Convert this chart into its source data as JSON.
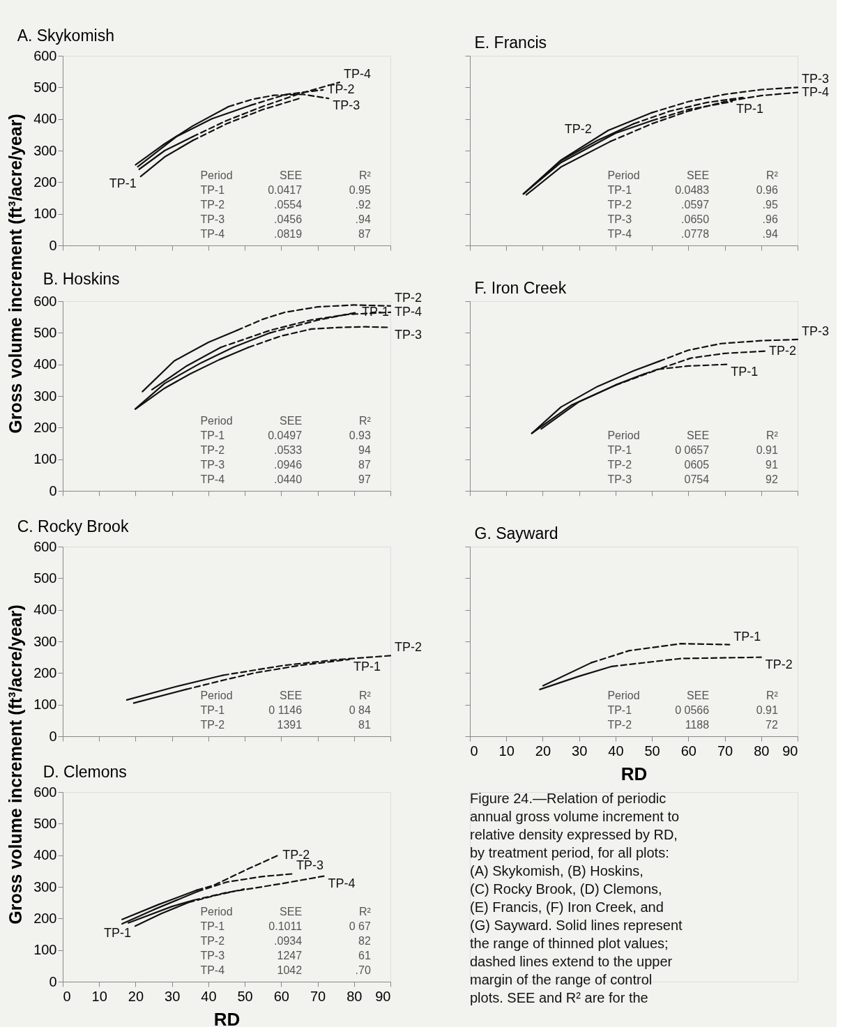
{
  "chart_data": [
    {
      "type": "line",
      "title": "A. Skykomish",
      "ylabel": "Gross volume increment (ft³/acre/year)",
      "xlim": [
        0,
        90
      ],
      "ylim": [
        0,
        600
      ],
      "xticks": [
        0,
        10,
        20,
        30,
        40,
        50,
        60,
        70,
        80,
        90
      ],
      "yticks": [
        0,
        100,
        200,
        300,
        400,
        500,
        600
      ],
      "grid": false,
      "tick_labels": "y",
      "series": [
        {
          "color": "#111111",
          "line_style": "solid",
          "x": [
            20,
            27.4,
            35.7,
            45.5
          ],
          "values": [
            255,
            317,
            378,
            439
          ]
        },
        {
          "color": "#111111",
          "line_style": "dashed",
          "x": [
            45.5,
            52,
            58,
            66,
            73
          ],
          "values": [
            439,
            462,
            475,
            478,
            465
          ]
        },
        {
          "color": "#111111",
          "line_style": "solid",
          "x": [
            20.6,
            31.2,
            41,
            51.5
          ],
          "values": [
            249,
            344,
            401,
            443
          ]
        },
        {
          "color": "#111111",
          "line_style": "dashed",
          "x": [
            51.5,
            61.4,
            71.5
          ],
          "values": [
            443,
            478,
            492
          ]
        },
        {
          "color": "#111111",
          "line_style": "solid",
          "x": [
            21,
            28,
            35.7
          ],
          "values": [
            241,
            300,
            344
          ]
        },
        {
          "color": "#111111",
          "line_style": "dashed",
          "x": [
            35.7,
            45,
            55,
            65,
            76
          ],
          "values": [
            344,
            395,
            440,
            480,
            516
          ]
        },
        {
          "color": "#111111",
          "line_style": "solid",
          "x": [
            21.4,
            28,
            35.7
          ],
          "values": [
            218,
            280,
            332
          ]
        },
        {
          "color": "#111111",
          "line_style": "dashed",
          "x": [
            35.7,
            45,
            55,
            65
          ],
          "values": [
            332,
            385,
            430,
            465
          ]
        }
      ],
      "annotations": [
        {
          "text": "TP-4",
          "x": 76,
          "y": 516
        },
        {
          "text": "TP-2",
          "x": 71.5,
          "y": 492
        },
        {
          "text": "TP-3",
          "x": 73,
          "y": 465
        },
        {
          "text": "TP-1",
          "x": 21.4,
          "y": 218
        },
        "Period",
        "SEE",
        "R²",
        "TP-1",
        "0.0417",
        "0.95",
        "TP-2",
        ".0554",
        ".92",
        "TP-3",
        ".0456",
        ".94",
        "TP-4",
        ".0819",
        "87"
      ]
    },
    {
      "type": "line",
      "title": "E. Francis",
      "xlim": [
        0,
        90
      ],
      "ylim": [
        0,
        600
      ],
      "xticks": [
        0,
        10,
        20,
        30,
        40,
        50,
        60,
        70,
        80,
        90
      ],
      "yticks": [
        0,
        100,
        200,
        300,
        400,
        500,
        600
      ],
      "grid": false,
      "tick_labels": false,
      "series": [
        {
          "color": "#111111",
          "line_style": "solid",
          "x": [
            14.7,
            25,
            38,
            50
          ],
          "values": [
            163,
            270,
            364,
            420
          ]
        },
        {
          "color": "#111111",
          "line_style": "dashed",
          "x": [
            50,
            60,
            70,
            80,
            90
          ],
          "values": [
            420,
            455,
            478,
            493,
            500
          ]
        },
        {
          "color": "#111111",
          "line_style": "solid",
          "x": [
            14.7,
            25,
            35,
            45
          ],
          "values": [
            163,
            268,
            332,
            385
          ]
        },
        {
          "color": "#111111",
          "line_style": "dashed",
          "x": [
            45,
            55,
            65,
            75
          ],
          "values": [
            385,
            425,
            452,
            468
          ]
        },
        {
          "color": "#111111",
          "line_style": "solid",
          "x": [
            14.7,
            25,
            40,
            50
          ],
          "values": [
            163,
            262,
            355,
            395
          ]
        },
        {
          "color": "#111111",
          "line_style": "dashed",
          "x": [
            50,
            60,
            72
          ],
          "values": [
            395,
            430,
            455
          ]
        },
        {
          "color": "#111111",
          "line_style": "solid",
          "x": [
            15.5,
            25,
            38.6
          ],
          "values": [
            160,
            248,
            329
          ]
        },
        {
          "color": "#111111",
          "line_style": "dashed",
          "x": [
            38.6,
            50,
            60,
            70,
            80,
            90
          ],
          "values": [
            329,
            385,
            425,
            455,
            474,
            484
          ]
        }
      ],
      "annotations": [
        {
          "text": "TP-3",
          "x": 90,
          "y": 500
        },
        {
          "text": "TP-4",
          "x": 90,
          "y": 484
        },
        {
          "text": "TP-1",
          "x": 72,
          "y": 455
        },
        {
          "text": "TP-2",
          "x": 35,
          "y": 332
        },
        "Period",
        "SEE",
        "R²",
        "TP-1",
        "0.0483",
        "0.96",
        "TP-2",
        ".0597",
        ".95",
        "TP-3",
        ".0650",
        ".96",
        "TP-4",
        ".0778",
        ".94"
      ]
    },
    {
      "type": "line",
      "title": "B. Hoskins",
      "xlim": [
        0,
        90
      ],
      "ylim": [
        0,
        600
      ],
      "xticks": [
        0,
        10,
        20,
        30,
        40,
        50,
        60,
        70,
        80,
        90
      ],
      "yticks": [
        0,
        100,
        200,
        300,
        400,
        500,
        600
      ],
      "grid": false,
      "tick_labels": "y",
      "series": [
        {
          "color": "#111111",
          "line_style": "solid",
          "x": [
            21.9,
            30.6,
            40,
            47.9
          ],
          "values": [
            314,
            411,
            470,
            508
          ]
        },
        {
          "color": "#111111",
          "line_style": "dashed",
          "x": [
            47.9,
            55,
            61,
            70,
            80,
            90
          ],
          "values": [
            508,
            543,
            565,
            582,
            588,
            585
          ]
        },
        {
          "color": "#111111",
          "line_style": "solid",
          "x": [
            24.5,
            34,
            43.4
          ],
          "values": [
            320,
            395,
            454
          ]
        },
        {
          "color": "#111111",
          "line_style": "dashed",
          "x": [
            43.4,
            57,
            68,
            78,
            90
          ],
          "values": [
            454,
            508,
            540,
            558,
            565
          ]
        },
        {
          "color": "#111111",
          "line_style": "solid",
          "x": [
            19.9,
            28,
            38,
            47,
            57
          ],
          "values": [
            259,
            340,
            405,
            455,
            500
          ]
        },
        {
          "color": "#111111",
          "line_style": "dashed",
          "x": [
            57,
            70,
            81
          ],
          "values": [
            500,
            540,
            565
          ]
        },
        {
          "color": "#111111",
          "line_style": "solid",
          "x": [
            20,
            28,
            35,
            43,
            51
          ],
          "values": [
            259,
            325,
            370,
            415,
            454
          ]
        },
        {
          "color": "#111111",
          "line_style": "dashed",
          "x": [
            51,
            60,
            68.3,
            76,
            83,
            90
          ],
          "values": [
            454,
            490,
            512,
            517,
            519,
            517
          ]
        }
      ],
      "annotations": [
        {
          "text": "TP-2",
          "x": 90,
          "y": 585
        },
        {
          "text": "TP-1",
          "x": 81,
          "y": 565
        },
        {
          "text": "TP-4",
          "x": 90,
          "y": 565
        },
        {
          "text": "TP-3",
          "x": 90,
          "y": 517
        },
        "Period",
        "SEE",
        "R²",
        "TP-1",
        "0.0497",
        "0.93",
        "TP-2",
        ".0533",
        "94",
        "TP-3",
        ".0946",
        "87",
        "TP-4",
        ".0440",
        "97"
      ]
    },
    {
      "type": "line",
      "title": "F. Iron Creek",
      "xlim": [
        0,
        90
      ],
      "ylim": [
        0,
        600
      ],
      "xticks": [
        0,
        10,
        20,
        30,
        40,
        50,
        60,
        70,
        80,
        90
      ],
      "yticks": [
        0,
        100,
        200,
        300,
        400,
        500,
        600
      ],
      "grid": false,
      "tick_labels": false,
      "series": [
        {
          "color": "#111111",
          "line_style": "solid",
          "x": [
            17,
            25,
            35,
            45,
            52
          ],
          "values": [
            182,
            265,
            330,
            380,
            410
          ]
        },
        {
          "color": "#111111",
          "line_style": "dashed",
          "x": [
            52,
            60,
            69,
            80,
            90
          ],
          "values": [
            410,
            445,
            466,
            475,
            479
          ]
        },
        {
          "color": "#111111",
          "line_style": "solid",
          "x": [
            19.6,
            30,
            40,
            47.9
          ],
          "values": [
            196,
            282,
            335,
            370
          ]
        },
        {
          "color": "#111111",
          "line_style": "dashed",
          "x": [
            47.9,
            60.7,
            70,
            81
          ],
          "values": [
            370,
            420,
            435,
            442
          ]
        },
        {
          "color": "#111111",
          "line_style": "solid",
          "x": [
            17,
            28,
            40
          ],
          "values": [
            182,
            272,
            334
          ]
        },
        {
          "color": "#111111",
          "line_style": "dashed",
          "x": [
            40,
            52,
            60,
            70.5
          ],
          "values": [
            334,
            385,
            395,
            400
          ]
        }
      ],
      "annotations": [
        {
          "text": "TP-3",
          "x": 90,
          "y": 479
        },
        {
          "text": "TP-2",
          "x": 81,
          "y": 442
        },
        {
          "text": "TP-1",
          "x": 70.5,
          "y": 400
        },
        "Period",
        "SEE",
        "R²",
        "TP-1",
        "0 0657",
        "0.91",
        "TP-2",
        "0605",
        "91",
        "TP-3",
        "0754",
        "92"
      ]
    },
    {
      "type": "line",
      "title": "C. Rocky Brook",
      "ylabel": "Gross volume increment (ft³/acre/year)",
      "xlim": [
        0,
        90
      ],
      "ylim": [
        0,
        600
      ],
      "xticks": [
        0,
        10,
        20,
        30,
        40,
        50,
        60,
        70,
        80,
        90
      ],
      "yticks": [
        0,
        100,
        200,
        300,
        400,
        500,
        600
      ],
      "grid": false,
      "tick_labels": "y",
      "series": [
        {
          "color": "#111111",
          "line_style": "solid",
          "x": [
            17.6,
            30.4,
            44
          ],
          "values": [
            115,
            155,
            193
          ]
        },
        {
          "color": "#111111",
          "line_style": "dashed",
          "x": [
            44,
            60.6,
            75,
            90
          ],
          "values": [
            193,
            224,
            242,
            255
          ]
        },
        {
          "color": "#111111",
          "line_style": "solid",
          "x": [
            19.5,
            33.8
          ],
          "values": [
            105,
            148
          ]
        },
        {
          "color": "#111111",
          "line_style": "dashed",
          "x": [
            33.8,
            45,
            53,
            65,
            78.7
          ],
          "values": [
            148,
            180,
            201,
            224,
            243
          ]
        }
      ],
      "annotations": [
        {
          "text": "TP-2",
          "x": 90,
          "y": 255
        },
        {
          "text": "TP-1",
          "x": 78.7,
          "y": 243
        },
        "Period",
        "SEE",
        "R²",
        "TP-1",
        "0 1146",
        "0 84",
        "TP-2",
        "1391",
        "81"
      ]
    },
    {
      "type": "line",
      "title": "G. Sayward",
      "xlabel": "RD",
      "xlim": [
        0,
        90
      ],
      "ylim": [
        0,
        600
      ],
      "xticks": [
        0,
        10,
        20,
        30,
        40,
        50,
        60,
        70,
        80,
        90
      ],
      "yticks": [
        0,
        100,
        200,
        300,
        400,
        500,
        600
      ],
      "grid": false,
      "tick_labels": "x",
      "series": [
        {
          "color": "#111111",
          "line_style": "solid",
          "x": [
            20.1,
            33.4
          ],
          "values": [
            160,
            233
          ]
        },
        {
          "color": "#111111",
          "line_style": "dashed",
          "x": [
            33.4,
            43.8,
            58,
            71.3
          ],
          "values": [
            233,
            271,
            293,
            290
          ]
        },
        {
          "color": "#111111",
          "line_style": "solid",
          "x": [
            19.2,
            30,
            39
          ],
          "values": [
            148,
            190,
            221
          ]
        },
        {
          "color": "#111111",
          "line_style": "dashed",
          "x": [
            39,
            58,
            80
          ],
          "values": [
            221,
            246,
            250
          ]
        }
      ],
      "annotations": [
        {
          "text": "TP-1",
          "x": 71.3,
          "y": 290
        },
        {
          "text": "TP-2",
          "x": 80,
          "y": 250
        },
        "Period",
        "SEE",
        "R²",
        "TP-1",
        "0 0566",
        "0.91",
        "TP-2",
        "1188",
        "72"
      ]
    },
    {
      "type": "line",
      "title": "D. Clemons",
      "xlabel": "RD",
      "xlim": [
        0,
        90
      ],
      "ylim": [
        0,
        600
      ],
      "xticks": [
        0,
        10,
        20,
        30,
        40,
        50,
        60,
        70,
        80,
        90
      ],
      "yticks": [
        0,
        100,
        200,
        300,
        400,
        500,
        600
      ],
      "grid": false,
      "series": [
        {
          "color": "#111111",
          "line_style": "solid",
          "x": [
            16.3,
            26.3,
            36.9
          ],
          "values": [
            197,
            244,
            290
          ]
        },
        {
          "color": "#111111",
          "line_style": "dashed",
          "x": [
            36.9,
            41.5,
            50,
            59.2
          ],
          "values": [
            290,
            305,
            352,
            400
          ]
        },
        {
          "color": "#111111",
          "line_style": "solid",
          "x": [
            16.3,
            25,
            37
          ],
          "values": [
            183,
            228,
            285
          ]
        },
        {
          "color": "#111111",
          "line_style": "dashed",
          "x": [
            37,
            45,
            55,
            63
          ],
          "values": [
            285,
            315,
            333,
            341
          ]
        },
        {
          "color": "#111111",
          "line_style": "solid",
          "x": [
            18,
            30,
            36
          ],
          "values": [
            186,
            238,
            258
          ]
        },
        {
          "color": "#111111",
          "line_style": "dashed",
          "x": [
            36,
            45,
            60,
            71.7
          ],
          "values": [
            258,
            282,
            310,
            334
          ]
        },
        {
          "color": "#111111",
          "line_style": "solid",
          "x": [
            19.9,
            27,
            34.6
          ],
          "values": [
            176,
            215,
            251
          ]
        },
        {
          "color": "#111111",
          "line_style": "dashed",
          "x": [
            34.6,
            42,
            49.8
          ],
          "values": [
            251,
            273,
            293
          ]
        }
      ],
      "annotations": [
        {
          "text": "TP-2",
          "x": 59.2,
          "y": 400
        },
        {
          "text": "TP-3",
          "x": 63,
          "y": 341
        },
        {
          "text": "TP-4",
          "x": 71.7,
          "y": 334
        },
        {
          "text": "TP-1",
          "x": 19.9,
          "y": 176
        },
        "Period",
        "SEE",
        "R²",
        "TP-1",
        "0.1011",
        "0 67",
        "TP-2",
        ".0934",
        "82",
        "TP-3",
        "1247",
        "61",
        "TP-4",
        "1042",
        ".70"
      ]
    },
    {
      "type": "other",
      "annotations": [
        "Figure 24.—Relation of periodic",
        "annual gross volume increment to",
        "relative density expressed by RD,",
        "by treatment period, for all plots:",
        "(A) Skykomish, (B) Hoskins,",
        "(C) Rocky Brook, (D) Clemons,",
        "(E) Francis, (F) Iron Creek, and",
        "(G) Sayward. Solid lines represent",
        "the range of thinned plot values;",
        "dashed lines extend to the upper",
        "margin of the range of control",
        "plots. SEE and R² are for the"
      ]
    }
  ]
}
